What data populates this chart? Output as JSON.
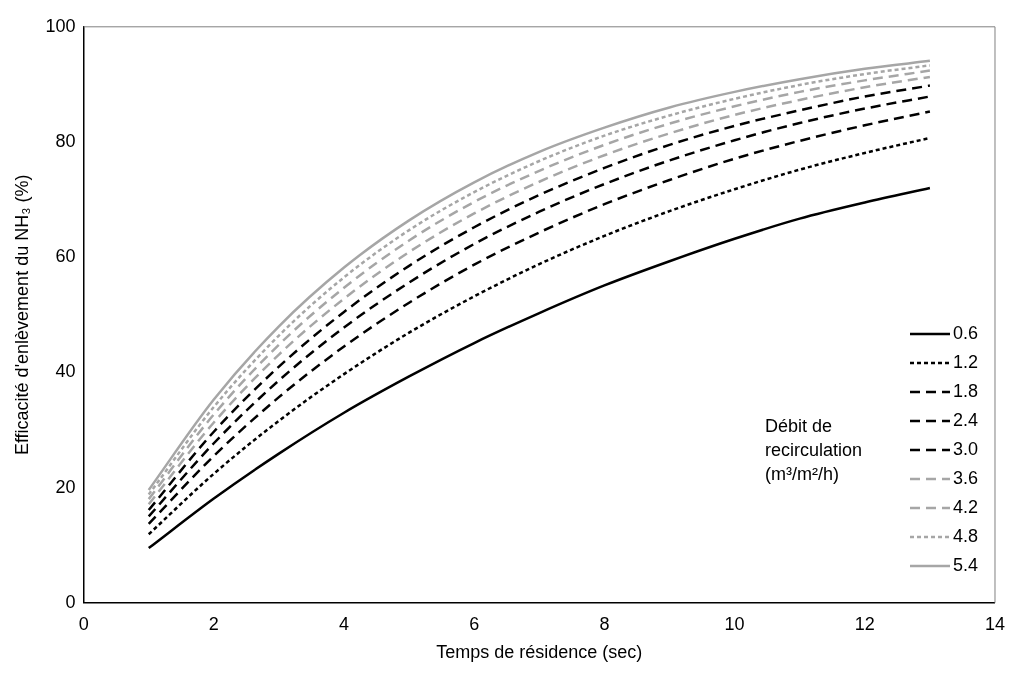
{
  "chart_data": {
    "type": "line",
    "xlabel": "Temps de résidence (sec)",
    "ylabel": "Efficacité d'enlèvement du NH₃ (%)",
    "legend_title": "Débit de recirculation (m³/m²/h)",
    "legend": "bottom right",
    "grid": false,
    "marker": "none",
    "x": [
      1,
      2,
      3,
      4,
      5,
      6,
      7,
      8,
      9,
      10,
      11,
      12,
      13
    ],
    "xlim": [
      0,
      14
    ],
    "xticks": [
      0,
      2,
      4,
      6,
      8,
      10,
      12,
      14
    ],
    "ylim": [
      0,
      100
    ],
    "yticks": [
      0,
      20,
      40,
      60,
      80,
      100
    ],
    "series": [
      {
        "name": "0.6",
        "color": "#000000",
        "line_style": "solid",
        "values": [
          9.5,
          18.1,
          25.9,
          33.0,
          39.3,
          45.1,
          50.3,
          55.1,
          59.3,
          63.2,
          66.7,
          69.5,
          72.0
        ]
      },
      {
        "name": "1.2",
        "color": "#000000",
        "line_style": "dotted",
        "values": [
          11.9,
          22.4,
          31.6,
          39.7,
          46.9,
          53.2,
          58.8,
          63.7,
          68.0,
          71.8,
          75.2,
          78.1,
          80.7
        ]
      },
      {
        "name": "1.8",
        "color": "#000000",
        "line_style": "dashed",
        "values": [
          13.7,
          25.5,
          35.7,
          44.5,
          52.1,
          58.7,
          64.3,
          69.2,
          73.4,
          77.1,
          80.2,
          82.9,
          85.3
        ]
      },
      {
        "name": "2.4",
        "color": "#000000",
        "line_style": "dashed",
        "values": [
          15.0,
          27.7,
          38.6,
          47.8,
          55.6,
          62.3,
          67.9,
          72.7,
          76.8,
          80.3,
          83.3,
          85.8,
          87.9
        ]
      },
      {
        "name": "3.0",
        "color": "#000000",
        "line_style": "dashed",
        "values": [
          16.1,
          29.7,
          41.0,
          50.5,
          58.5,
          65.2,
          70.8,
          75.5,
          79.5,
          82.8,
          85.5,
          87.9,
          89.8
        ]
      },
      {
        "name": "3.6",
        "color": "#a6a6a6",
        "line_style": "dashed",
        "values": [
          17.1,
          31.3,
          43.1,
          52.8,
          60.9,
          67.6,
          73.1,
          77.7,
          81.5,
          84.7,
          87.3,
          89.5,
          91.3
        ]
      },
      {
        "name": "4.2",
        "color": "#a6a6a6",
        "line_style": "dashed",
        "values": [
          18.0,
          32.7,
          44.8,
          54.7,
          62.9,
          69.6,
          75.0,
          79.5,
          83.2,
          86.2,
          88.7,
          90.7,
          92.4
        ]
      },
      {
        "name": "4.8",
        "color": "#a6a6a6",
        "line_style": "dotted",
        "values": [
          18.8,
          34.0,
          46.4,
          56.5,
          64.7,
          71.3,
          76.7,
          81.1,
          84.6,
          87.5,
          89.9,
          91.8,
          93.3
        ]
      },
      {
        "name": "5.4",
        "color": "#a6a6a6",
        "line_style": "solid",
        "values": [
          19.6,
          35.3,
          48.0,
          58.2,
          66.4,
          73.0,
          78.3,
          82.5,
          86.0,
          88.7,
          90.9,
          92.7,
          94.1
        ]
      }
    ]
  }
}
